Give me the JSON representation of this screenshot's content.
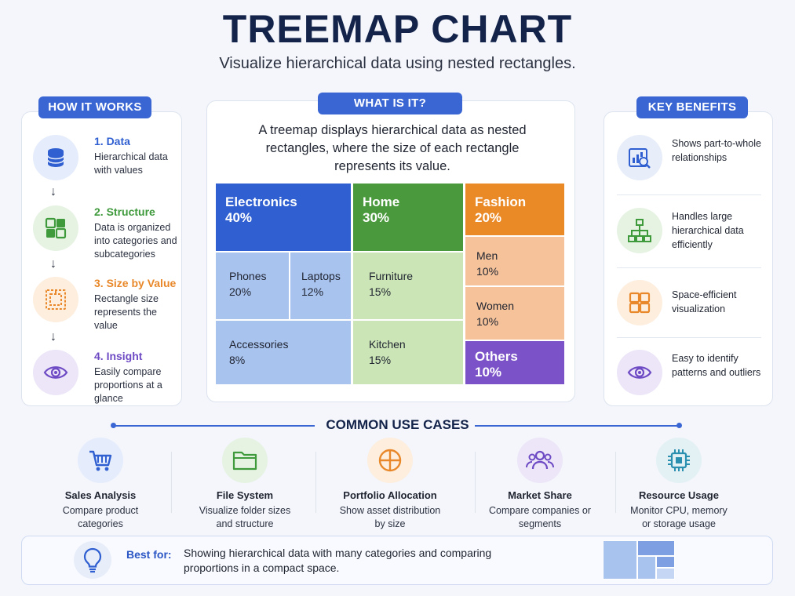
{
  "header": {
    "title": "TREEMAP CHART",
    "subtitle": "Visualize hierarchical data using nested rectangles."
  },
  "how_it_works": {
    "label": "HOW IT WORKS",
    "steps": [
      {
        "title": "1. Data",
        "desc": "Hierarchical data with values",
        "icon": "database-icon",
        "color": "#2f5fd0",
        "bg": "#e5ecfb"
      },
      {
        "title": "2. Structure",
        "desc": "Data is organized into categories and subcategories",
        "icon": "grid-icon",
        "color": "#3f9a3c",
        "bg": "#e6f3e3"
      },
      {
        "title": "3. Size by Value",
        "desc": "Rectangle size represents the value",
        "icon": "nested-squares-icon",
        "color": "#e8882a",
        "bg": "#fdeede"
      },
      {
        "title": "4. Insight",
        "desc": "Easily compare proportions at a glance",
        "icon": "eye-icon",
        "color": "#6e4bc4",
        "bg": "#ece6f8"
      }
    ]
  },
  "what_is_it": {
    "label": "WHAT IS IT?",
    "text": "A treemap displays hierarchical data as nested rectangles, where the size of each rectangle represents its value."
  },
  "chart_data": {
    "type": "treemap",
    "groups": [
      {
        "name": "Electronics",
        "value": 40,
        "label": "40%",
        "color": "#2f5fd0",
        "light": "#a9c3ef",
        "children": [
          {
            "name": "Phones",
            "value": 20,
            "label": "20%"
          },
          {
            "name": "Laptops",
            "value": 12,
            "label": "12%"
          },
          {
            "name": "Accessories",
            "value": 8,
            "label": "8%"
          }
        ]
      },
      {
        "name": "Home",
        "value": 30,
        "label": "30%",
        "color": "#4a9a3d",
        "light": "#cbe5b6",
        "children": [
          {
            "name": "Furniture",
            "value": 15,
            "label": "15%"
          },
          {
            "name": "Kitchen",
            "value": 15,
            "label": "15%"
          }
        ]
      },
      {
        "name": "Fashion",
        "value": 20,
        "label": "20%",
        "color": "#ea8a27",
        "light": "#f5c29a",
        "children": [
          {
            "name": "Men",
            "value": 10,
            "label": "10%"
          },
          {
            "name": "Women",
            "value": 10,
            "label": "10%"
          }
        ]
      },
      {
        "name": "Others",
        "value": 10,
        "label": "10%",
        "color": "#7b52c8"
      }
    ]
  },
  "key_benefits": {
    "label": "KEY BENEFITS",
    "items": [
      {
        "text": "Shows part-to-whole relationships",
        "icon": "chart-magnifier-icon"
      },
      {
        "text": "Handles large hierarchical data efficiently",
        "icon": "hierarchy-icon"
      },
      {
        "text": "Space-efficient visualization",
        "icon": "grid-icon"
      },
      {
        "text": "Easy to identify patterns and outliers",
        "icon": "eye-icon"
      }
    ]
  },
  "use_cases": {
    "label": "COMMON USE CASES",
    "items": [
      {
        "title": "Sales Analysis",
        "desc": "Compare product categories",
        "icon": "shopping-cart-icon",
        "bg": "#e5ecfb",
        "color": "#2f5fd0"
      },
      {
        "title": "File System",
        "desc": "Visualize folder sizes and structure",
        "icon": "folder-icon",
        "bg": "#e6f3e3",
        "color": "#3f9a3c"
      },
      {
        "title": "Portfolio Allocation",
        "desc": "Show asset distribution by size",
        "icon": "pie-chart-icon",
        "bg": "#fdeede",
        "color": "#e8882a"
      },
      {
        "title": "Market Share",
        "desc": "Compare companies or segments",
        "icon": "users-icon",
        "bg": "#ece6f8",
        "color": "#6e4bc4"
      },
      {
        "title": "Resource Usage",
        "desc": "Monitor CPU, memory or storage usage",
        "icon": "cpu-chip-icon",
        "bg": "#e3f1f5",
        "color": "#2b8fb0"
      }
    ]
  },
  "best_for": {
    "label": "Best for:",
    "text": "Showing hierarchical data with many categories and comparing proportions in a compact space.",
    "icon": "lightbulb-icon"
  }
}
